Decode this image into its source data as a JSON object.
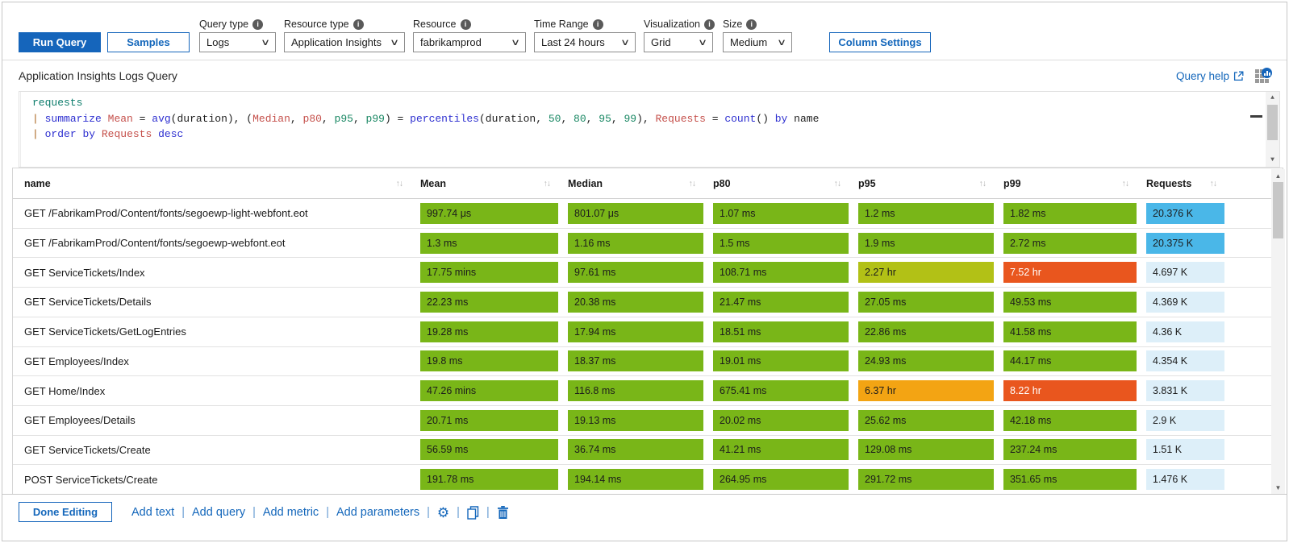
{
  "toolbar": {
    "run_query_label": "Run Query",
    "samples_label": "Samples",
    "column_settings_label": "Column Settings",
    "dropdowns": [
      {
        "id": "query-type",
        "label": "Query type",
        "value": "Logs"
      },
      {
        "id": "resource-type",
        "label": "Resource type",
        "value": "Application Insights"
      },
      {
        "id": "resource",
        "label": "Resource",
        "value": "fabrikamprod"
      },
      {
        "id": "time-range",
        "label": "Time Range",
        "value": "Last 24 hours"
      },
      {
        "id": "visualization",
        "label": "Visualization",
        "value": "Grid"
      },
      {
        "id": "size",
        "label": "Size",
        "value": "Medium"
      }
    ]
  },
  "title_bar": {
    "title": "Application Insights Logs Query",
    "query_help_label": "Query help"
  },
  "query": {
    "lines": [
      [
        {
          "t": "requests",
          "c": "tbl"
        }
      ],
      [
        {
          "t": "| ",
          "c": "pipe"
        },
        {
          "t": "summarize",
          "c": "kw"
        },
        {
          "t": " ",
          "c": "pl"
        },
        {
          "t": "Mean",
          "c": "col"
        },
        {
          "t": " = ",
          "c": "pl"
        },
        {
          "t": "avg",
          "c": "kw"
        },
        {
          "t": "(duration), (",
          "c": "pl"
        },
        {
          "t": "Median",
          "c": "col"
        },
        {
          "t": ", ",
          "c": "pl"
        },
        {
          "t": "p80",
          "c": "col"
        },
        {
          "t": ", ",
          "c": "pl"
        },
        {
          "t": "p95",
          "c": "num"
        },
        {
          "t": ", ",
          "c": "pl"
        },
        {
          "t": "p99",
          "c": "num"
        },
        {
          "t": ") = ",
          "c": "pl"
        },
        {
          "t": "percentiles",
          "c": "kw"
        },
        {
          "t": "(duration, ",
          "c": "pl"
        },
        {
          "t": "50",
          "c": "num"
        },
        {
          "t": ", ",
          "c": "pl"
        },
        {
          "t": "80",
          "c": "num"
        },
        {
          "t": ", ",
          "c": "pl"
        },
        {
          "t": "95",
          "c": "num"
        },
        {
          "t": ", ",
          "c": "pl"
        },
        {
          "t": "99",
          "c": "num"
        },
        {
          "t": "), ",
          "c": "pl"
        },
        {
          "t": "Requests",
          "c": "col"
        },
        {
          "t": " = ",
          "c": "pl"
        },
        {
          "t": "count",
          "c": "kw"
        },
        {
          "t": "() ",
          "c": "pl"
        },
        {
          "t": "by",
          "c": "kw"
        },
        {
          "t": " name",
          "c": "pl"
        }
      ],
      [
        {
          "t": "| ",
          "c": "pipe"
        },
        {
          "t": "order",
          "c": "kw"
        },
        {
          "t": " ",
          "c": "pl"
        },
        {
          "t": "by",
          "c": "kw"
        },
        {
          "t": " ",
          "c": "pl"
        },
        {
          "t": "Requests",
          "c": "col"
        },
        {
          "t": " ",
          "c": "pl"
        },
        {
          "t": "desc",
          "c": "kw"
        }
      ]
    ]
  },
  "table": {
    "columns": [
      "name",
      "Mean",
      "Median",
      "p80",
      "p95",
      "p99",
      "Requests"
    ],
    "rows": [
      {
        "name": "GET /FabrikamProd/Content/fonts/segoewp-light-webfont.eot",
        "cells": [
          [
            "997.74 μs",
            "g"
          ],
          [
            "801.07 μs",
            "g"
          ],
          [
            "1.07 ms",
            "g"
          ],
          [
            "1.2 ms",
            "g"
          ],
          [
            "1.82 ms",
            "g"
          ],
          [
            "20.376 K",
            "b"
          ]
        ]
      },
      {
        "name": "GET /FabrikamProd/Content/fonts/segoewp-webfont.eot",
        "cells": [
          [
            "1.3 ms",
            "g"
          ],
          [
            "1.16 ms",
            "g"
          ],
          [
            "1.5 ms",
            "g"
          ],
          [
            "1.9 ms",
            "g"
          ],
          [
            "2.72 ms",
            "g"
          ],
          [
            "20.375 K",
            "b"
          ]
        ]
      },
      {
        "name": "GET ServiceTickets/Index",
        "cells": [
          [
            "17.75 mins",
            "g"
          ],
          [
            "97.61 ms",
            "g"
          ],
          [
            "108.71 ms",
            "g"
          ],
          [
            "2.27 hr",
            "yg"
          ],
          [
            "7.52 hr",
            "r"
          ],
          [
            "4.697 K",
            "pb"
          ]
        ]
      },
      {
        "name": "GET ServiceTickets/Details",
        "cells": [
          [
            "22.23 ms",
            "g"
          ],
          [
            "20.38 ms",
            "g"
          ],
          [
            "21.47 ms",
            "g"
          ],
          [
            "27.05 ms",
            "g"
          ],
          [
            "49.53 ms",
            "g"
          ],
          [
            "4.369 K",
            "pb"
          ]
        ]
      },
      {
        "name": "GET ServiceTickets/GetLogEntries",
        "cells": [
          [
            "19.28 ms",
            "g"
          ],
          [
            "17.94 ms",
            "g"
          ],
          [
            "18.51 ms",
            "g"
          ],
          [
            "22.86 ms",
            "g"
          ],
          [
            "41.58 ms",
            "g"
          ],
          [
            "4.36 K",
            "pb"
          ]
        ]
      },
      {
        "name": "GET Employees/Index",
        "cells": [
          [
            "19.8 ms",
            "g"
          ],
          [
            "18.37 ms",
            "g"
          ],
          [
            "19.01 ms",
            "g"
          ],
          [
            "24.93 ms",
            "g"
          ],
          [
            "44.17 ms",
            "g"
          ],
          [
            "4.354 K",
            "pb"
          ]
        ]
      },
      {
        "name": "GET Home/Index",
        "cells": [
          [
            "47.26 mins",
            "g"
          ],
          [
            "116.8 ms",
            "g"
          ],
          [
            "675.41 ms",
            "g"
          ],
          [
            "6.37 hr",
            "o"
          ],
          [
            "8.22 hr",
            "r"
          ],
          [
            "3.831 K",
            "pb"
          ]
        ]
      },
      {
        "name": "GET Employees/Details",
        "cells": [
          [
            "20.71 ms",
            "g"
          ],
          [
            "19.13 ms",
            "g"
          ],
          [
            "20.02 ms",
            "g"
          ],
          [
            "25.62 ms",
            "g"
          ],
          [
            "42.18 ms",
            "g"
          ],
          [
            "2.9 K",
            "pb"
          ]
        ]
      },
      {
        "name": "GET ServiceTickets/Create",
        "cells": [
          [
            "56.59 ms",
            "g"
          ],
          [
            "36.74 ms",
            "g"
          ],
          [
            "41.21 ms",
            "g"
          ],
          [
            "129.08 ms",
            "g"
          ],
          [
            "237.24 ms",
            "g"
          ],
          [
            "1.51 K",
            "pb"
          ]
        ]
      },
      {
        "name": "POST ServiceTickets/Create",
        "cells": [
          [
            "191.78 ms",
            "g"
          ],
          [
            "194.14 ms",
            "g"
          ],
          [
            "264.95 ms",
            "g"
          ],
          [
            "291.72 ms",
            "g"
          ],
          [
            "351.65 ms",
            "g"
          ],
          [
            "1.476 K",
            "pb"
          ]
        ]
      }
    ]
  },
  "footer": {
    "done_editing_label": "Done Editing",
    "links": [
      "Add text",
      "Add query",
      "Add metric",
      "Add parameters"
    ],
    "separator": "|"
  },
  "icons": {
    "info": "i",
    "sort": "↑↓",
    "chevron": "∨",
    "scroll_up": "▲",
    "scroll_down": "▼",
    "gear": "⚙"
  },
  "colors": {
    "accent": "#1467bb",
    "green": "#79b618",
    "yellow_green": "#b2c116",
    "orange": "#f3a413",
    "red": "#e9561e",
    "bright_blue": "#4ab7e8",
    "pale_blue": "#ddeff9"
  }
}
